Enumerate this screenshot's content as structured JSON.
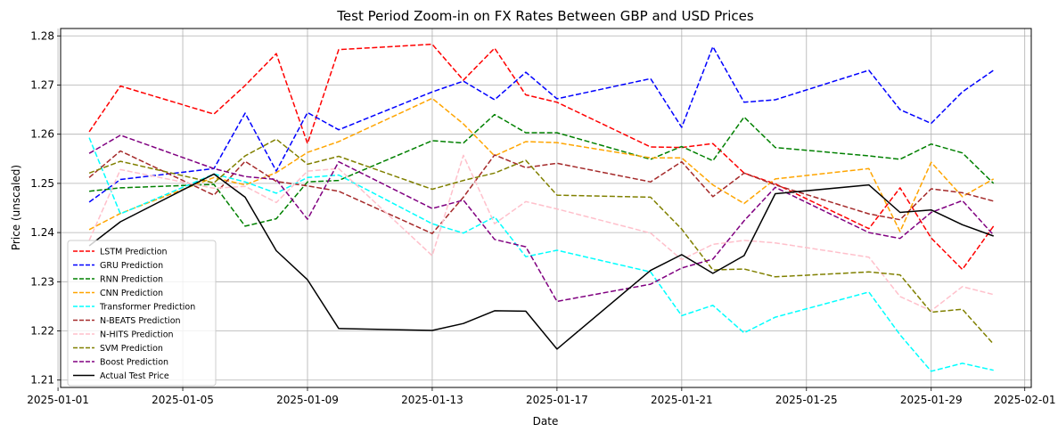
{
  "chart_data": {
    "type": "line",
    "title": "Test Period Zoom-in on FX Rates Between GBP and USD Prices",
    "xlabel": "Date",
    "ylabel": "Price (unscaled)",
    "x_range": [
      "2025-01-01T02:00",
      "2025-02-01T05:00"
    ],
    "ylim": [
      1.2085,
      1.2815
    ],
    "x_ticks": [
      "2025-01-01",
      "2025-01-05",
      "2025-01-09",
      "2025-01-13",
      "2025-01-17",
      "2025-01-21",
      "2025-01-25",
      "2025-01-29",
      "2025-02-01"
    ],
    "x_tick_values": [
      "2025-01-01",
      "2025-01-05",
      "2025-01-09",
      "2025-01-13",
      "2025-01-17",
      "2025-01-21",
      "2025-01-25",
      "2025-01-29",
      "2025-02-01"
    ],
    "y_ticks": [
      "1.21",
      "1.22",
      "1.23",
      "1.24",
      "1.25",
      "1.26",
      "1.27",
      "1.28"
    ],
    "y_tick_values": [
      1.21,
      1.22,
      1.23,
      1.24,
      1.25,
      1.26,
      1.27,
      1.28
    ],
    "grid": true,
    "legend_position": "lower-left",
    "dates": [
      "2025-01-02",
      "2025-01-03",
      "2025-01-06",
      "2025-01-07",
      "2025-01-08",
      "2025-01-09",
      "2025-01-10",
      "2025-01-13",
      "2025-01-14",
      "2025-01-15",
      "2025-01-16",
      "2025-01-17",
      "2025-01-20",
      "2025-01-21",
      "2025-01-22",
      "2025-01-23",
      "2025-01-24",
      "2025-01-27",
      "2025-01-28",
      "2025-01-29",
      "2025-01-30",
      "2025-01-31"
    ],
    "series": [
      {
        "name": "LSTM Prediction",
        "color": "#ff0000",
        "dash": "dashed",
        "values": [
          1.2605,
          1.2698,
          1.2641,
          1.2699,
          1.2764,
          1.2581,
          1.2772,
          1.2783,
          1.271,
          1.2775,
          1.268,
          1.2665,
          1.2574,
          1.2573,
          1.2581,
          1.2521,
          1.2499,
          1.2408,
          1.2491,
          1.2389,
          1.2325,
          1.2413
        ]
      },
      {
        "name": "GRU Prediction",
        "color": "#0000ff",
        "dash": "dashed",
        "values": [
          1.2462,
          1.2508,
          1.253,
          1.2643,
          1.2525,
          1.2644,
          1.2609,
          1.2686,
          1.2708,
          1.267,
          1.2726,
          1.2672,
          1.2713,
          1.2614,
          1.2778,
          1.2665,
          1.267,
          1.273,
          1.265,
          1.2622,
          1.2686,
          1.273
        ]
      },
      {
        "name": "RNN Prediction",
        "color": "#008000",
        "dash": "dashed",
        "values": [
          1.2484,
          1.2491,
          1.2498,
          1.2413,
          1.2428,
          1.2503,
          1.2506,
          1.2587,
          1.2582,
          1.264,
          1.2603,
          1.2603,
          1.2549,
          1.2575,
          1.2546,
          1.2635,
          1.2573,
          1.2556,
          1.2549,
          1.258,
          1.2562,
          1.25
        ]
      },
      {
        "name": "CNN Prediction",
        "color": "#ffa500",
        "dash": "dashed",
        "values": [
          1.2406,
          1.2439,
          1.2512,
          1.2497,
          1.2522,
          1.2563,
          1.2585,
          1.2673,
          1.2621,
          1.2556,
          1.2585,
          1.2583,
          1.2552,
          1.2552,
          1.2497,
          1.2459,
          1.2509,
          1.253,
          1.2402,
          1.2543,
          1.2473,
          1.2509
        ]
      },
      {
        "name": "Transformer Prediction",
        "color": "#00ffff",
        "dash": "dashed",
        "values": [
          1.2593,
          1.2438,
          1.2519,
          1.2503,
          1.248,
          1.2512,
          1.2517,
          1.2418,
          1.2399,
          1.2432,
          1.2351,
          1.2364,
          1.232,
          1.2231,
          1.2252,
          1.2196,
          1.2228,
          1.2279,
          1.2192,
          1.2118,
          1.2134,
          1.212
        ]
      },
      {
        "name": "N-BEATS Prediction",
        "color": "#a52a2a",
        "dash": "dashed",
        "values": [
          1.2512,
          1.2566,
          1.2476,
          1.2545,
          1.2504,
          1.2495,
          1.2484,
          1.2398,
          1.2472,
          1.2558,
          1.2532,
          1.2541,
          1.2503,
          1.2544,
          1.2473,
          1.2521,
          1.2497,
          1.2438,
          1.2426,
          1.2489,
          1.2481,
          1.2464
        ]
      },
      {
        "name": "N-HITS Prediction",
        "color": "#ffc0cb",
        "dash": "dashed",
        "values": [
          1.2384,
          1.2528,
          1.249,
          1.2494,
          1.2461,
          1.2525,
          1.253,
          1.2353,
          1.2557,
          1.2418,
          1.2463,
          1.2448,
          1.2399,
          1.2345,
          1.2376,
          1.2384,
          1.2379,
          1.235,
          1.227,
          1.2241,
          1.229,
          1.2274
        ]
      },
      {
        "name": "SVM Prediction",
        "color": "#808000",
        "dash": "dashed",
        "values": [
          1.2521,
          1.2545,
          1.2501,
          1.2556,
          1.259,
          1.2539,
          1.2555,
          1.2488,
          1.2506,
          1.2521,
          1.2547,
          1.2476,
          1.2472,
          1.2407,
          1.2324,
          1.2326,
          1.231,
          1.232,
          1.2314,
          1.2238,
          1.2244,
          1.2173
        ]
      },
      {
        "name": "Boost Prediction",
        "color": "#800080",
        "dash": "dashed",
        "values": [
          1.2561,
          1.2598,
          1.253,
          1.2514,
          1.2508,
          1.2427,
          1.2544,
          1.2449,
          1.2466,
          1.2386,
          1.2371,
          1.226,
          1.2295,
          1.2328,
          1.2346,
          1.2424,
          1.2492,
          1.24,
          1.2388,
          1.2441,
          1.2465,
          1.2395
        ]
      },
      {
        "name": "Actual Test Price",
        "color": "#000000",
        "dash": "solid",
        "values": [
          1.2373,
          1.2422,
          1.2519,
          1.2472,
          1.2363,
          1.2304,
          1.2205,
          1.2201,
          1.2215,
          1.2241,
          1.224,
          1.2163,
          1.2323,
          1.2355,
          1.2317,
          1.2353,
          1.2479,
          1.2497,
          1.2441,
          1.2446,
          1.2416,
          1.2393
        ]
      }
    ]
  }
}
